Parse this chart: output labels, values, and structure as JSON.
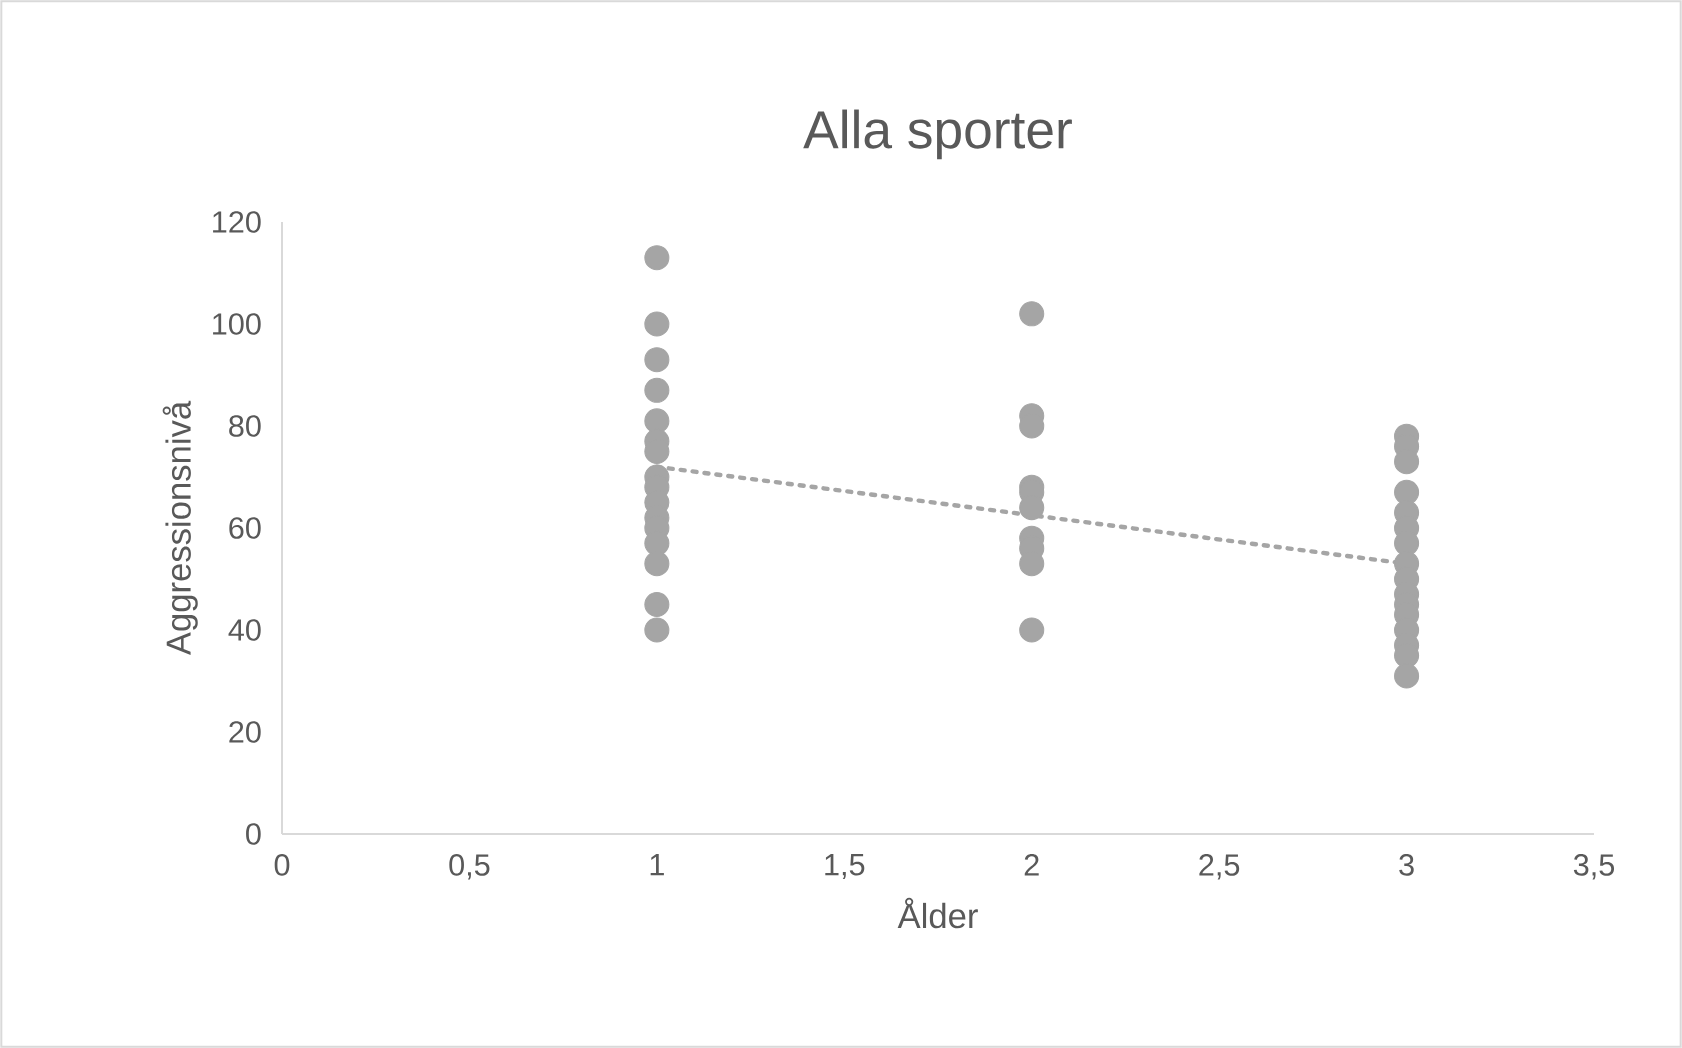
{
  "chart_data": {
    "type": "scatter",
    "title": "Alla sporter",
    "xlabel": "Ålder",
    "ylabel": "Aggressionsnivå",
    "xlim": [
      0,
      3.5
    ],
    "ylim": [
      0,
      120
    ],
    "xticks": [
      0,
      {
        "value": 0.5,
        "label": "0,5"
      },
      1,
      {
        "value": 1.5,
        "label": "1,5"
      },
      2,
      {
        "value": 2.5,
        "label": "2,5"
      },
      3,
      {
        "value": 3.5,
        "label": "3,5"
      }
    ],
    "yticks": [
      0,
      20,
      40,
      60,
      80,
      100,
      120
    ],
    "grid": false,
    "series": [
      {
        "color": "#a5a5a5",
        "x": [
          1,
          1,
          1,
          1,
          1,
          1,
          1,
          1,
          1,
          1,
          1,
          1,
          1,
          1,
          1,
          1,
          2,
          2,
          2,
          2,
          2,
          2,
          2,
          2,
          2,
          2,
          3,
          3,
          3,
          3,
          3,
          3,
          3,
          3,
          3,
          3,
          3,
          3,
          3,
          3,
          3,
          3
        ],
        "values": [
          113,
          100,
          93,
          87,
          81,
          77,
          75,
          70,
          68,
          65,
          62,
          60,
          57,
          53,
          45,
          40,
          102,
          82,
          80,
          68,
          67,
          64,
          58,
          56,
          53,
          40,
          78,
          76,
          73,
          67,
          63,
          60,
          57,
          53,
          50,
          47,
          45,
          43,
          40,
          37,
          35,
          31
        ]
      },
      {
        "type": "line",
        "color": "#a5a5a5",
        "marker": "none",
        "line_style": "dotted",
        "x": [
          1,
          3
        ],
        "values": [
          72,
          53
        ]
      }
    ]
  }
}
